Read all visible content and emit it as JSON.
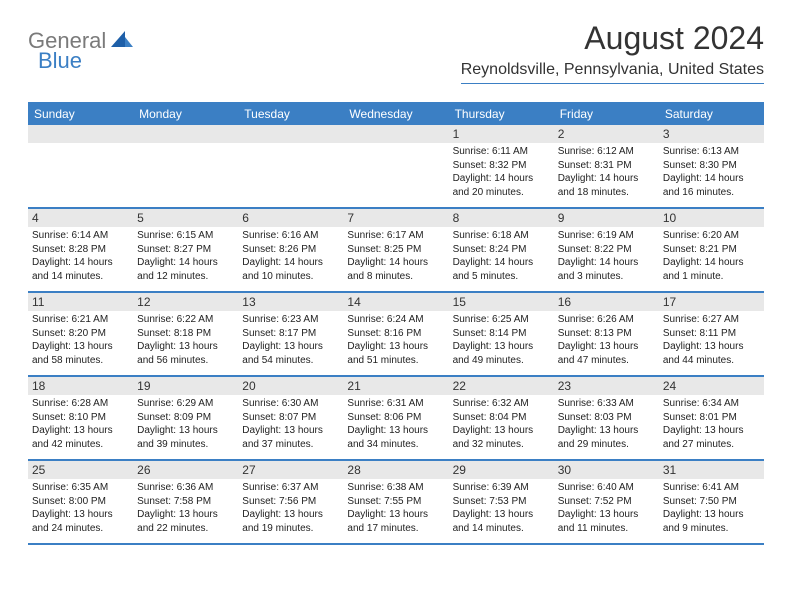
{
  "brand": {
    "part1": "General",
    "part2": "Blue"
  },
  "title": "August 2024",
  "location": "Reynoldsville, Pennsylvania, United States",
  "styling": {
    "accent_color": "#3b7fc4",
    "header_bg": "#3b7fc4",
    "daynum_bg": "#e8e8e8",
    "body_bg": "#ffffff",
    "text_color": "#222222",
    "title_color": "#333333",
    "brand_gray": "#7a7a7a",
    "title_fontsize": 32,
    "location_fontsize": 16,
    "weekday_fontsize": 12,
    "body_fontsize": 10
  },
  "weekdays": [
    "Sunday",
    "Monday",
    "Tuesday",
    "Wednesday",
    "Thursday",
    "Friday",
    "Saturday"
  ],
  "weeks": [
    [
      {
        "day": "",
        "sunrise": "",
        "sunset": "",
        "daylight": ""
      },
      {
        "day": "",
        "sunrise": "",
        "sunset": "",
        "daylight": ""
      },
      {
        "day": "",
        "sunrise": "",
        "sunset": "",
        "daylight": ""
      },
      {
        "day": "",
        "sunrise": "",
        "sunset": "",
        "daylight": ""
      },
      {
        "day": "1",
        "sunrise": "Sunrise: 6:11 AM",
        "sunset": "Sunset: 8:32 PM",
        "daylight": "Daylight: 14 hours and 20 minutes."
      },
      {
        "day": "2",
        "sunrise": "Sunrise: 6:12 AM",
        "sunset": "Sunset: 8:31 PM",
        "daylight": "Daylight: 14 hours and 18 minutes."
      },
      {
        "day": "3",
        "sunrise": "Sunrise: 6:13 AM",
        "sunset": "Sunset: 8:30 PM",
        "daylight": "Daylight: 14 hours and 16 minutes."
      }
    ],
    [
      {
        "day": "4",
        "sunrise": "Sunrise: 6:14 AM",
        "sunset": "Sunset: 8:28 PM",
        "daylight": "Daylight: 14 hours and 14 minutes."
      },
      {
        "day": "5",
        "sunrise": "Sunrise: 6:15 AM",
        "sunset": "Sunset: 8:27 PM",
        "daylight": "Daylight: 14 hours and 12 minutes."
      },
      {
        "day": "6",
        "sunrise": "Sunrise: 6:16 AM",
        "sunset": "Sunset: 8:26 PM",
        "daylight": "Daylight: 14 hours and 10 minutes."
      },
      {
        "day": "7",
        "sunrise": "Sunrise: 6:17 AM",
        "sunset": "Sunset: 8:25 PM",
        "daylight": "Daylight: 14 hours and 8 minutes."
      },
      {
        "day": "8",
        "sunrise": "Sunrise: 6:18 AM",
        "sunset": "Sunset: 8:24 PM",
        "daylight": "Daylight: 14 hours and 5 minutes."
      },
      {
        "day": "9",
        "sunrise": "Sunrise: 6:19 AM",
        "sunset": "Sunset: 8:22 PM",
        "daylight": "Daylight: 14 hours and 3 minutes."
      },
      {
        "day": "10",
        "sunrise": "Sunrise: 6:20 AM",
        "sunset": "Sunset: 8:21 PM",
        "daylight": "Daylight: 14 hours and 1 minute."
      }
    ],
    [
      {
        "day": "11",
        "sunrise": "Sunrise: 6:21 AM",
        "sunset": "Sunset: 8:20 PM",
        "daylight": "Daylight: 13 hours and 58 minutes."
      },
      {
        "day": "12",
        "sunrise": "Sunrise: 6:22 AM",
        "sunset": "Sunset: 8:18 PM",
        "daylight": "Daylight: 13 hours and 56 minutes."
      },
      {
        "day": "13",
        "sunrise": "Sunrise: 6:23 AM",
        "sunset": "Sunset: 8:17 PM",
        "daylight": "Daylight: 13 hours and 54 minutes."
      },
      {
        "day": "14",
        "sunrise": "Sunrise: 6:24 AM",
        "sunset": "Sunset: 8:16 PM",
        "daylight": "Daylight: 13 hours and 51 minutes."
      },
      {
        "day": "15",
        "sunrise": "Sunrise: 6:25 AM",
        "sunset": "Sunset: 8:14 PM",
        "daylight": "Daylight: 13 hours and 49 minutes."
      },
      {
        "day": "16",
        "sunrise": "Sunrise: 6:26 AM",
        "sunset": "Sunset: 8:13 PM",
        "daylight": "Daylight: 13 hours and 47 minutes."
      },
      {
        "day": "17",
        "sunrise": "Sunrise: 6:27 AM",
        "sunset": "Sunset: 8:11 PM",
        "daylight": "Daylight: 13 hours and 44 minutes."
      }
    ],
    [
      {
        "day": "18",
        "sunrise": "Sunrise: 6:28 AM",
        "sunset": "Sunset: 8:10 PM",
        "daylight": "Daylight: 13 hours and 42 minutes."
      },
      {
        "day": "19",
        "sunrise": "Sunrise: 6:29 AM",
        "sunset": "Sunset: 8:09 PM",
        "daylight": "Daylight: 13 hours and 39 minutes."
      },
      {
        "day": "20",
        "sunrise": "Sunrise: 6:30 AM",
        "sunset": "Sunset: 8:07 PM",
        "daylight": "Daylight: 13 hours and 37 minutes."
      },
      {
        "day": "21",
        "sunrise": "Sunrise: 6:31 AM",
        "sunset": "Sunset: 8:06 PM",
        "daylight": "Daylight: 13 hours and 34 minutes."
      },
      {
        "day": "22",
        "sunrise": "Sunrise: 6:32 AM",
        "sunset": "Sunset: 8:04 PM",
        "daylight": "Daylight: 13 hours and 32 minutes."
      },
      {
        "day": "23",
        "sunrise": "Sunrise: 6:33 AM",
        "sunset": "Sunset: 8:03 PM",
        "daylight": "Daylight: 13 hours and 29 minutes."
      },
      {
        "day": "24",
        "sunrise": "Sunrise: 6:34 AM",
        "sunset": "Sunset: 8:01 PM",
        "daylight": "Daylight: 13 hours and 27 minutes."
      }
    ],
    [
      {
        "day": "25",
        "sunrise": "Sunrise: 6:35 AM",
        "sunset": "Sunset: 8:00 PM",
        "daylight": "Daylight: 13 hours and 24 minutes."
      },
      {
        "day": "26",
        "sunrise": "Sunrise: 6:36 AM",
        "sunset": "Sunset: 7:58 PM",
        "daylight": "Daylight: 13 hours and 22 minutes."
      },
      {
        "day": "27",
        "sunrise": "Sunrise: 6:37 AM",
        "sunset": "Sunset: 7:56 PM",
        "daylight": "Daylight: 13 hours and 19 minutes."
      },
      {
        "day": "28",
        "sunrise": "Sunrise: 6:38 AM",
        "sunset": "Sunset: 7:55 PM",
        "daylight": "Daylight: 13 hours and 17 minutes."
      },
      {
        "day": "29",
        "sunrise": "Sunrise: 6:39 AM",
        "sunset": "Sunset: 7:53 PM",
        "daylight": "Daylight: 13 hours and 14 minutes."
      },
      {
        "day": "30",
        "sunrise": "Sunrise: 6:40 AM",
        "sunset": "Sunset: 7:52 PM",
        "daylight": "Daylight: 13 hours and 11 minutes."
      },
      {
        "day": "31",
        "sunrise": "Sunrise: 6:41 AM",
        "sunset": "Sunset: 7:50 PM",
        "daylight": "Daylight: 13 hours and 9 minutes."
      }
    ]
  ]
}
